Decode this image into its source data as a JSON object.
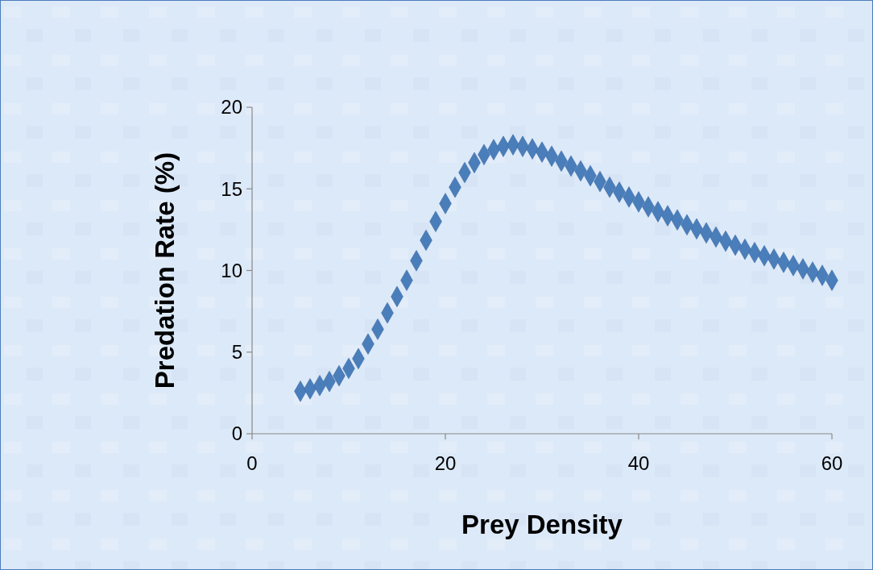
{
  "chart_data": {
    "type": "scatter",
    "xlabel": "Prey Density",
    "ylabel": "Predation Rate (%)",
    "x": [
      5,
      6,
      7,
      8,
      9,
      10,
      11,
      12,
      13,
      14,
      15,
      16,
      17,
      18,
      19,
      20,
      21,
      22,
      23,
      24,
      25,
      26,
      27,
      28,
      29,
      30,
      31,
      32,
      33,
      34,
      35,
      36,
      37,
      38,
      39,
      40,
      41,
      42,
      43,
      44,
      45,
      46,
      47,
      48,
      49,
      50,
      51,
      52,
      53,
      54,
      55,
      56,
      57,
      58,
      59,
      60
    ],
    "series": [
      {
        "color": "#4a7ebb",
        "values": [
          2.6,
          2.75,
          2.95,
          3.2,
          3.55,
          4.0,
          4.6,
          5.5,
          6.4,
          7.4,
          8.4,
          9.4,
          10.6,
          11.85,
          13.0,
          14.1,
          15.1,
          16.0,
          16.6,
          17.1,
          17.4,
          17.6,
          17.7,
          17.6,
          17.45,
          17.25,
          17.0,
          16.7,
          16.4,
          16.1,
          15.8,
          15.45,
          15.1,
          14.8,
          14.5,
          14.2,
          13.9,
          13.6,
          13.35,
          13.1,
          12.8,
          12.55,
          12.3,
          12.05,
          11.8,
          11.55,
          11.3,
          11.1,
          10.9,
          10.7,
          10.5,
          10.3,
          10.1,
          9.9,
          9.7,
          9.4
        ]
      }
    ],
    "xlim": [
      0,
      60
    ],
    "xticks": [
      0,
      20,
      40,
      60
    ],
    "ylim": [
      0,
      20
    ],
    "yticks": [
      0,
      5,
      10,
      15,
      20
    ],
    "marker": "diamond"
  }
}
